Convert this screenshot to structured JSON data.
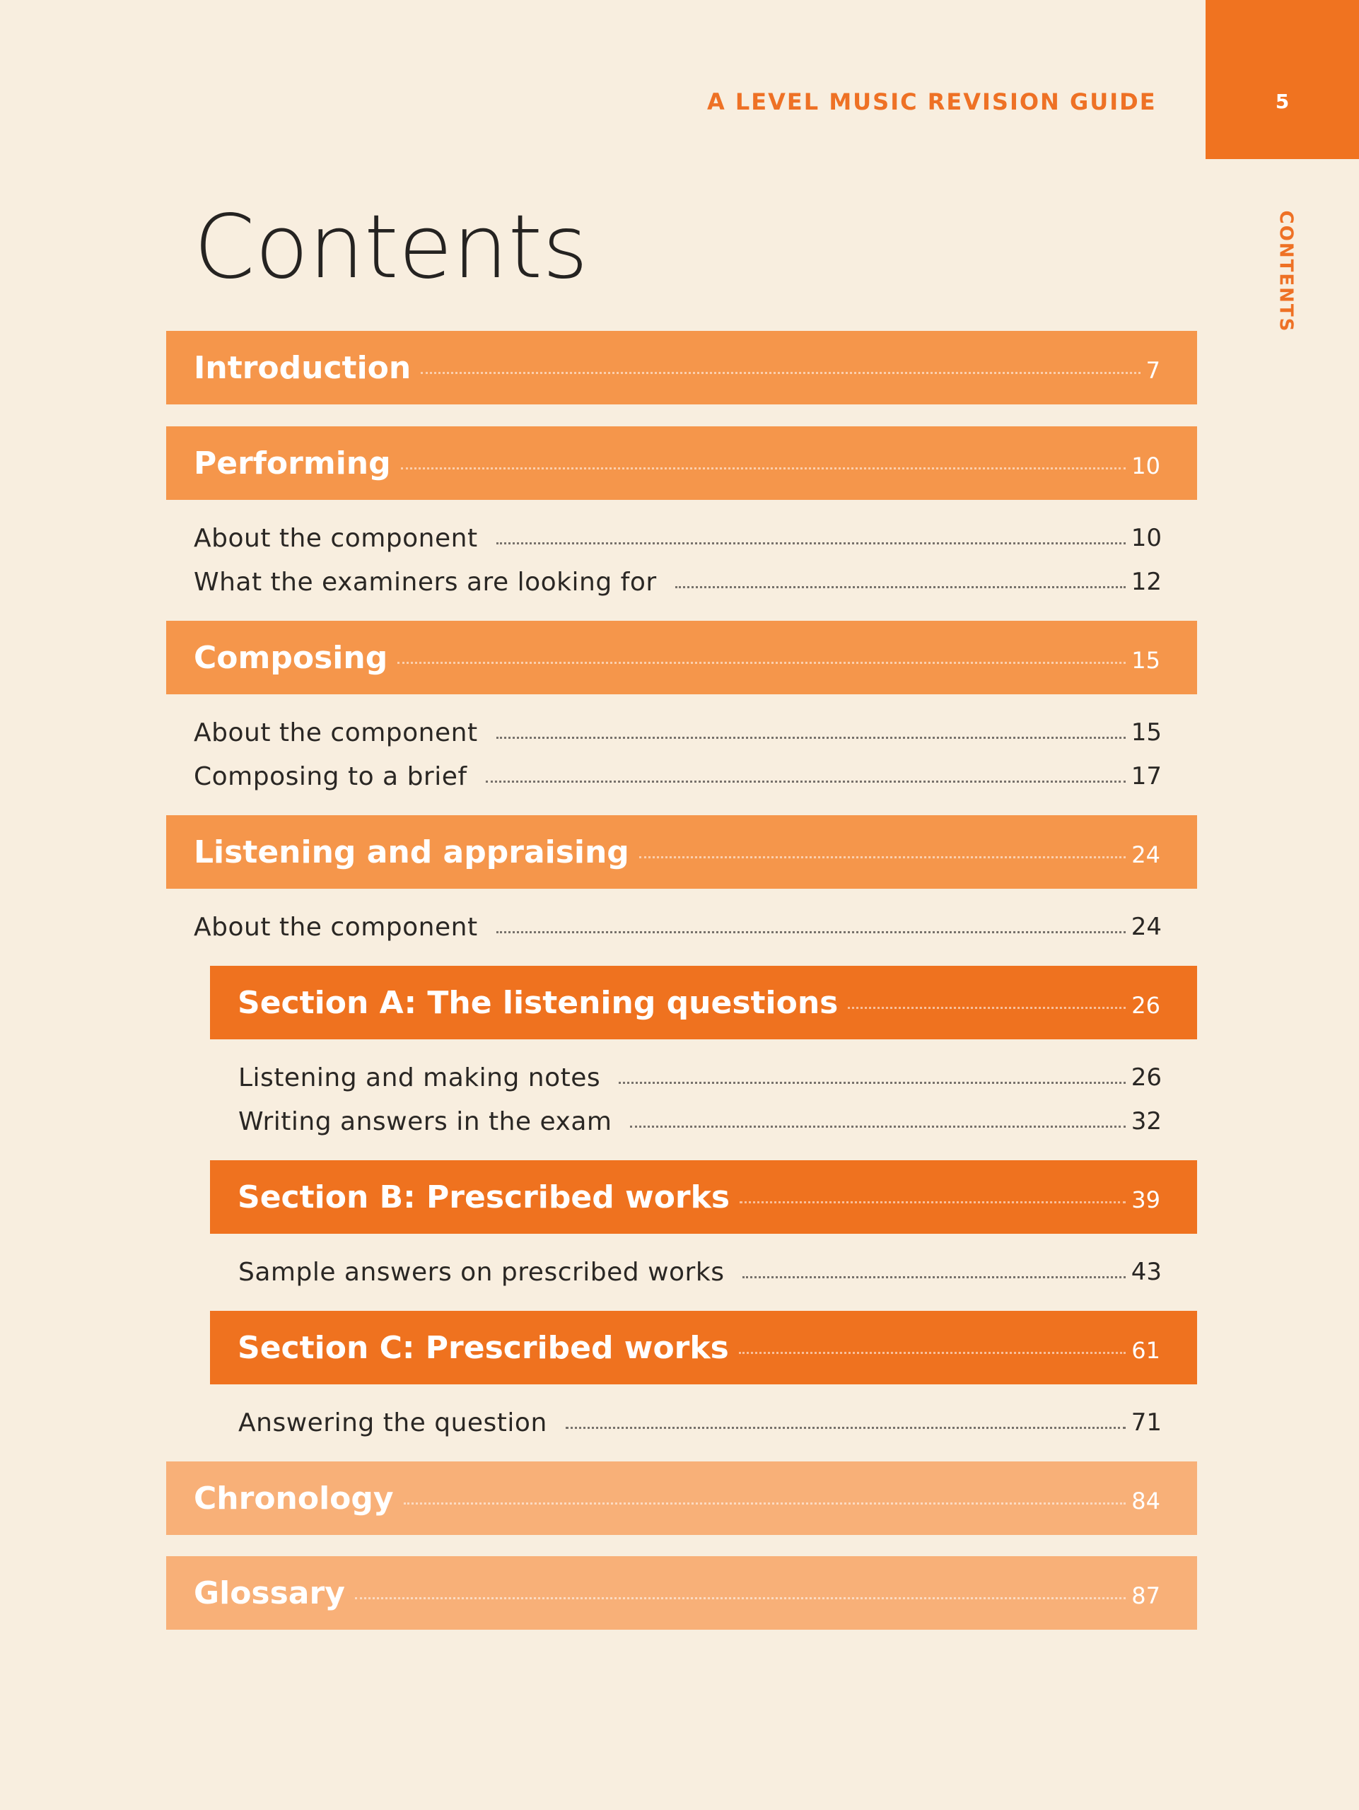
{
  "header": {
    "running_title": "A LEVEL MUSIC REVISION GUIDE",
    "page_number": "5",
    "side_label": "CONTENTS"
  },
  "title": "Contents",
  "toc": {
    "introduction": {
      "label": "Introduction",
      "page": "7"
    },
    "performing": {
      "label": "Performing",
      "page": "10",
      "items": [
        {
          "label": "About the component",
          "page": "10"
        },
        {
          "label": "What the examiners are looking for",
          "page": "12"
        }
      ]
    },
    "composing": {
      "label": "Composing",
      "page": "15",
      "items": [
        {
          "label": "About the component",
          "page": "15"
        },
        {
          "label": "Composing to a brief",
          "page": "17"
        }
      ]
    },
    "listening": {
      "label": "Listening and appraising",
      "page": "24",
      "items": [
        {
          "label": "About the component",
          "page": "24"
        }
      ],
      "sections": [
        {
          "label": "Section A: The listening questions",
          "page": "26",
          "items": [
            {
              "label": "Listening and making notes",
              "page": "26"
            },
            {
              "label": "Writing answers in the exam",
              "page": "32"
            }
          ]
        },
        {
          "label": "Section B: Prescribed works",
          "page": "39",
          "items": [
            {
              "label": "Sample answers on prescribed works",
              "page": "43"
            }
          ]
        },
        {
          "label": "Section C: Prescribed works",
          "page": "61",
          "items": [
            {
              "label": "Answering the question",
              "page": "71"
            }
          ]
        }
      ]
    },
    "chronology": {
      "label": "Chronology",
      "page": "84"
    },
    "glossary": {
      "label": "Glossary",
      "page": "87"
    }
  },
  "colors": {
    "background": "#f8eedf",
    "accent_orange": "#ef721f",
    "main_bar": "#f5964b",
    "light_bar": "#f8b078",
    "text": "#2a2724"
  }
}
